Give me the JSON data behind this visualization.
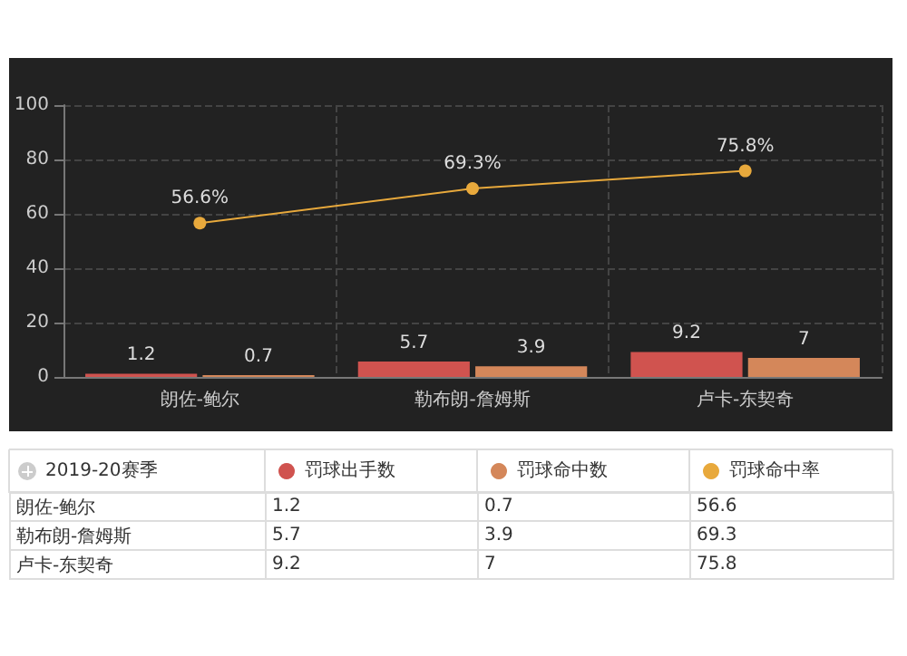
{
  "chart_data": [
    {
      "type": "bar",
      "categories": [
        "朗佐-鲍尔",
        "勒布朗-詹姆斯",
        "卢卡-东契奇"
      ],
      "legend_title": "2019-20赛季",
      "series": [
        {
          "name": "罚球出手数",
          "color": "#d0534f",
          "values": [
            1.2,
            5.7,
            9.2
          ],
          "value_labels": [
            "1.2",
            "5.7",
            "9.2"
          ]
        },
        {
          "name": "罚球命中数",
          "color": "#d4875a",
          "values": [
            0.7,
            3.9,
            7
          ],
          "value_labels": [
            "0.7",
            "3.9",
            "7"
          ]
        },
        {
          "name": "罚球命中率",
          "type": "line",
          "color": "#e8a93c",
          "values": [
            56.6,
            69.3,
            75.8
          ],
          "value_labels": [
            "56.6%",
            "69.3%",
            "75.8%"
          ],
          "marker": "circle"
        }
      ],
      "ylim": [
        0,
        100
      ],
      "yticks": [
        0,
        20,
        40,
        60,
        80,
        100
      ],
      "grid": true,
      "legend": "bottom",
      "data_labels": true
    },
    {
      "type": "other",
      "categories": [
        "朗佐-鲍尔",
        "勒布朗-詹姆斯",
        "卢卡-东契奇"
      ],
      "annotations": [
        "1.2",
        "0.7",
        "56.6",
        "5.7",
        "3.9",
        "69.3",
        "9.2",
        "7",
        "75.8"
      ]
    }
  ]
}
